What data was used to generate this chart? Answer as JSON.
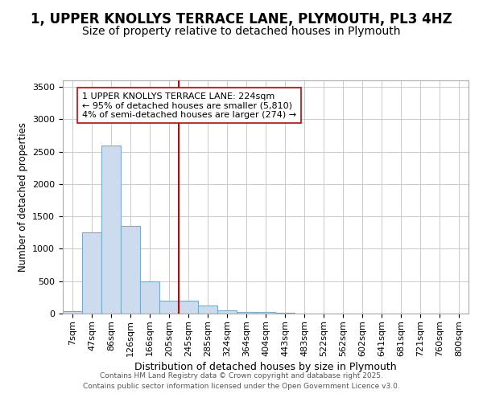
{
  "title": "1, UPPER KNOLLYS TERRACE LANE, PLYMOUTH, PL3 4HZ",
  "subtitle": "Size of property relative to detached houses in Plymouth",
  "xlabel": "Distribution of detached houses by size in Plymouth",
  "ylabel": "Number of detached properties",
  "bar_labels": [
    "7sqm",
    "47sqm",
    "86sqm",
    "126sqm",
    "166sqm",
    "205sqm",
    "245sqm",
    "285sqm",
    "324sqm",
    "364sqm",
    "404sqm",
    "443sqm",
    "483sqm",
    "522sqm",
    "562sqm",
    "602sqm",
    "641sqm",
    "681sqm",
    "721sqm",
    "760sqm",
    "800sqm"
  ],
  "bar_values": [
    40,
    1250,
    2600,
    1350,
    500,
    200,
    200,
    120,
    50,
    30,
    20,
    10,
    5,
    0,
    0,
    0,
    0,
    0,
    0,
    0,
    0
  ],
  "bar_color": "#ccdcee",
  "bar_edge_color": "#7aaac8",
  "vline_color": "#cc0000",
  "vline_pos": 6,
  "annotation_text": "1 UPPER KNOLLYS TERRACE LANE: 224sqm\n← 95% of detached houses are smaller (5,810)\n4% of semi-detached houses are larger (274) →",
  "ylim": [
    0,
    3600
  ],
  "yticks": [
    0,
    500,
    1000,
    1500,
    2000,
    2500,
    3000,
    3500
  ],
  "background_color": "#ffffff",
  "plot_bg_color": "#ffffff",
  "title_fontsize": 12,
  "subtitle_fontsize": 10,
  "footer_line1": "Contains HM Land Registry data © Crown copyright and database right 2025.",
  "footer_line2": "Contains public sector information licensed under the Open Government Licence v3.0."
}
